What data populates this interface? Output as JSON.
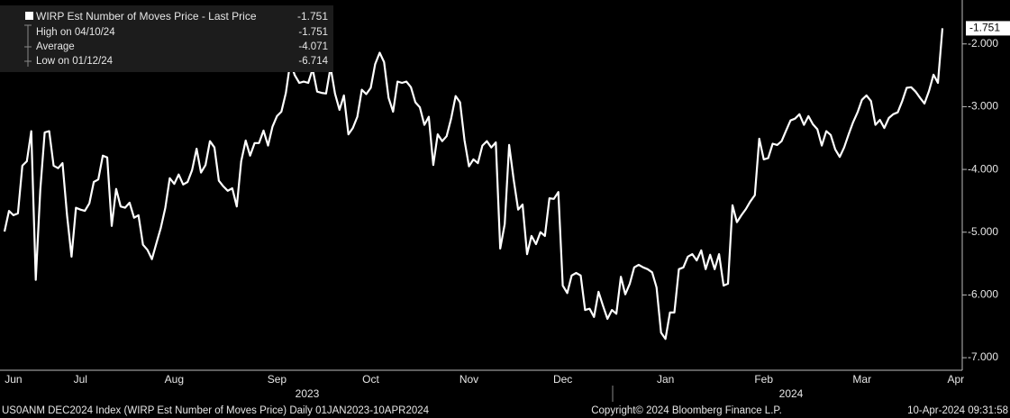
{
  "chart_data": {
    "type": "line",
    "categories": [
      null,
      null,
      "Jun",
      null,
      null,
      null,
      null,
      null,
      null,
      null,
      null,
      null,
      null,
      null,
      null,
      null,
      null,
      "Jul",
      null,
      null,
      null,
      null,
      null,
      null,
      null,
      null,
      null,
      null,
      null,
      null,
      null,
      null,
      null,
      null,
      null,
      null,
      null,
      null,
      "Aug",
      null,
      null,
      null,
      null,
      null,
      null,
      null,
      null,
      null,
      null,
      null,
      null,
      null,
      null,
      null,
      null,
      null,
      null,
      null,
      null,
      null,
      null,
      "Sep",
      null,
      null,
      null,
      null,
      null,
      null,
      null,
      null,
      null,
      null,
      null,
      null,
      null,
      null,
      null,
      null,
      null,
      null,
      null,
      null,
      "Oct",
      null,
      null,
      null,
      null,
      null,
      null,
      null,
      null,
      null,
      null,
      null,
      null,
      null,
      null,
      null,
      null,
      null,
      null,
      null,
      null,
      null,
      "Nov",
      null,
      null,
      null,
      null,
      null,
      null,
      null,
      null,
      null,
      null,
      null,
      null,
      null,
      null,
      null,
      null,
      null,
      null,
      null,
      null,
      "Dec",
      null,
      null,
      null,
      null,
      null,
      null,
      null,
      null,
      null,
      null,
      null,
      null,
      null,
      null,
      null,
      null,
      null,
      null,
      null,
      null,
      null,
      null,
      "Jan",
      null,
      null,
      null,
      null,
      null,
      null,
      null,
      null,
      null,
      null,
      null,
      null,
      null,
      null,
      null,
      null,
      null,
      null,
      null,
      null,
      null,
      "Feb",
      null,
      null,
      null,
      null,
      null,
      null,
      null,
      null,
      null,
      null,
      null,
      null,
      null,
      null,
      null,
      null,
      null,
      null,
      null,
      null,
      null,
      "Mar",
      null,
      null,
      null,
      null,
      null,
      null,
      null,
      null,
      null,
      null,
      null,
      null,
      null,
      null,
      null,
      null,
      null,
      null,
      null,
      null,
      "Apr"
    ],
    "values": [
      -4.99,
      -4.66,
      -4.73,
      -4.7,
      -3.94,
      -3.87,
      -3.39,
      -5.76,
      -4.33,
      -3.41,
      -3.39,
      -3.94,
      -3.98,
      -3.9,
      -4.73,
      -5.39,
      -4.61,
      -4.64,
      -4.66,
      -4.54,
      -4.2,
      -4.16,
      -3.78,
      -3.81,
      -4.9,
      -4.31,
      -4.59,
      -4.61,
      -4.53,
      -4.77,
      -4.73,
      -5.2,
      -5.28,
      -5.43,
      -5.18,
      -4.93,
      -4.61,
      -4.14,
      -4.23,
      -4.08,
      -4.24,
      -4.2,
      -4.01,
      -3.67,
      -4.05,
      -3.93,
      -3.55,
      -3.65,
      -4.18,
      -4.27,
      -4.34,
      -4.3,
      -4.59,
      -3.87,
      -3.54,
      -3.78,
      -3.58,
      -3.58,
      -3.38,
      -3.62,
      -3.32,
      -3.15,
      -3.08,
      -2.78,
      -2.29,
      -2.5,
      -2.62,
      -2.6,
      -2.62,
      -2.4,
      -2.76,
      -2.78,
      -2.79,
      -2.37,
      -2.79,
      -3.05,
      -2.82,
      -3.44,
      -3.34,
      -3.16,
      -2.73,
      -2.8,
      -2.7,
      -2.32,
      -2.14,
      -2.29,
      -2.86,
      -3.08,
      -2.6,
      -2.62,
      -2.6,
      -2.69,
      -2.93,
      -3.01,
      -3.29,
      -3.16,
      -3.93,
      -3.44,
      -3.55,
      -3.47,
      -3.19,
      -2.83,
      -2.93,
      -3.54,
      -3.95,
      -3.84,
      -3.9,
      -3.62,
      -3.55,
      -3.65,
      -3.57,
      -5.26,
      -4.87,
      -3.61,
      -4.16,
      -4.64,
      -4.56,
      -5.35,
      -5.06,
      -5.19,
      -5.0,
      -5.06,
      -4.46,
      -4.47,
      -4.36,
      -5.85,
      -5.97,
      -5.69,
      -5.65,
      -5.69,
      -6.24,
      -6.22,
      -6.35,
      -5.95,
      -6.17,
      -6.38,
      -6.24,
      -6.3,
      -5.71,
      -5.99,
      -5.82,
      -5.56,
      -5.52,
      -5.56,
      -5.59,
      -5.64,
      -5.88,
      -6.6,
      -6.7,
      -6.28,
      -6.28,
      -5.59,
      -5.56,
      -5.39,
      -5.35,
      -5.45,
      -5.29,
      -5.59,
      -5.36,
      -5.59,
      -5.35,
      -5.85,
      -5.82,
      -4.57,
      -4.84,
      -4.73,
      -4.63,
      -4.51,
      -4.41,
      -3.51,
      -3.84,
      -3.82,
      -3.59,
      -3.61,
      -3.55,
      -3.38,
      -3.22,
      -3.19,
      -3.12,
      -3.29,
      -3.15,
      -3.28,
      -3.36,
      -3.62,
      -3.39,
      -3.45,
      -3.68,
      -3.8,
      -3.65,
      -3.44,
      -3.25,
      -3.09,
      -2.89,
      -2.82,
      -2.91,
      -3.29,
      -3.21,
      -3.34,
      -3.18,
      -3.12,
      -3.09,
      -2.91,
      -2.7,
      -2.69,
      -2.76,
      -2.86,
      -2.95,
      -2.75,
      -2.49,
      -2.62,
      -1.751,
      null,
      null,
      null
    ],
    "color": "#ffffff",
    "ylim": [
      -7.2,
      -1.3
    ],
    "yticks": [
      {
        "value": -2,
        "label": "-2.000"
      },
      {
        "value": -3,
        "label": "-3.000"
      },
      {
        "value": -4,
        "label": "-4.000"
      },
      {
        "value": -5,
        "label": "-5.000"
      },
      {
        "value": -6,
        "label": "-6.000"
      },
      {
        "value": -7,
        "label": "-7.000"
      }
    ],
    "year_labels": [
      "2023",
      "2024"
    ],
    "legend": {
      "title": "WIRP Est Number of Moves Price - Last Price",
      "title_value": "-1.751",
      "rows": [
        {
          "label": "High on 04/10/24",
          "value": "-1.751"
        },
        {
          "label": "Average",
          "value": "-4.071"
        },
        {
          "label": "Low on 01/12/24",
          "value": "-6.714"
        }
      ]
    },
    "footer": {
      "left": "US0ANM DEC2024 Index (WIRP Est Number of Moves Price)  Daily 01JAN2023-10APR2024",
      "center": "Copyright© 2024 Bloomberg Finance L.P.",
      "right": "10-Apr-2024 09:31:58"
    }
  }
}
